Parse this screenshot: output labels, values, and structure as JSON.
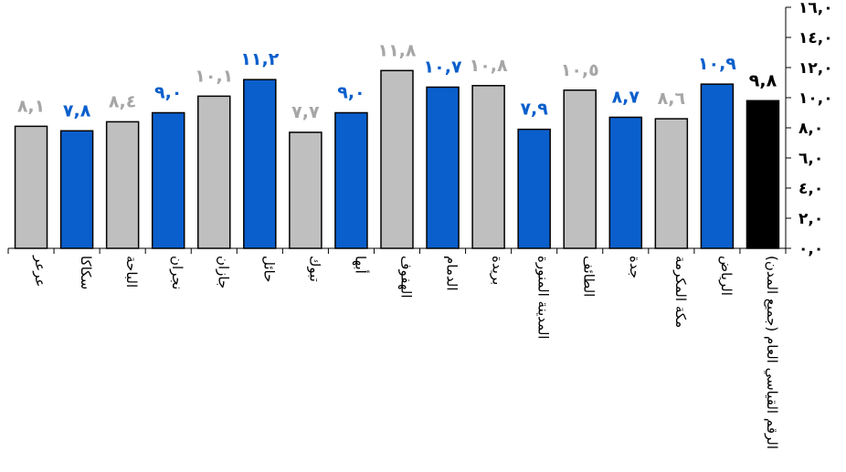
{
  "chart_data": {
    "type": "bar",
    "categories": [
      "عرعر",
      "سكاكا",
      "الباحة",
      "نجران",
      "جازان",
      "حائل",
      "تبوك",
      "أبها",
      "الهفوف",
      "الدمام",
      "بريدة",
      "المدينة المنورة",
      "الطائف",
      "جدة",
      "مكة المكرمة",
      "الرياض",
      "الرقم القياسي العام (جميع المدن)"
    ],
    "values": [
      8.1,
      7.8,
      8.4,
      9.0,
      10.1,
      11.2,
      7.7,
      9.0,
      11.8,
      10.7,
      10.8,
      7.9,
      10.5,
      8.7,
      8.6,
      10.9,
      9.8
    ],
    "value_labels": [
      "٨,١",
      "٧,٨",
      "٨,٤",
      "٩,٠",
      "١٠,١",
      "١١,٢",
      "٧,٧",
      "٩,٠",
      "١١,٨",
      "١٠,٧",
      "١٠,٨",
      "٧,٩",
      "١٠,٥",
      "٨,٧",
      "٨,٦",
      "١٠,٩",
      "٩,٨"
    ],
    "colors": [
      "#bfbfbf",
      "#0a5fcc",
      "#bfbfbf",
      "#0a5fcc",
      "#bfbfbf",
      "#0a5fcc",
      "#bfbfbf",
      "#0a5fcc",
      "#bfbfbf",
      "#0a5fcc",
      "#bfbfbf",
      "#0a5fcc",
      "#bfbfbf",
      "#0a5fcc",
      "#bfbfbf",
      "#0a5fcc",
      "#000000"
    ],
    "label_colors": [
      "#a6a6a6",
      "#0a5fcc",
      "#a6a6a6",
      "#0a5fcc",
      "#a6a6a6",
      "#0a5fcc",
      "#a6a6a6",
      "#0a5fcc",
      "#a6a6a6",
      "#0a5fcc",
      "#a6a6a6",
      "#0a5fcc",
      "#a6a6a6",
      "#0a5fcc",
      "#a6a6a6",
      "#0a5fcc",
      "#000000"
    ],
    "ylim": [
      0,
      16
    ],
    "yticks": [
      0,
      2,
      4,
      6,
      8,
      10,
      12,
      14,
      16
    ],
    "ytick_labels": [
      "٠,٠",
      "٢,٠",
      "٤,٠",
      "٦,٠",
      "٨,٠",
      "١٠,٠",
      "١٢,٠",
      "١٤,٠",
      "١٦,٠"
    ],
    "y_axis_side": "right",
    "grid": false,
    "legend": "none",
    "title": "",
    "xlabel": "",
    "ylabel": ""
  }
}
